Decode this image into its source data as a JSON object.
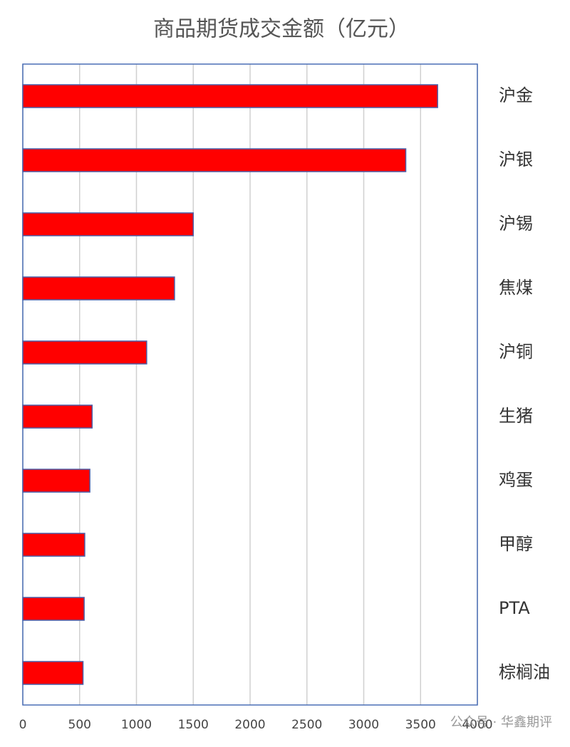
{
  "chart_data": {
    "type": "barh",
    "title": "商品期货成交金额（亿元）",
    "categories": [
      "沪金",
      "沪银",
      "沪锡",
      "焦煤",
      "沪铜",
      "生猪",
      "鸡蛋",
      "甲醇",
      "PTA",
      "棕榈油"
    ],
    "values": [
      3650,
      3370,
      1500,
      1335,
      1090,
      610,
      590,
      545,
      540,
      530
    ],
    "color": "#ff0000",
    "edge_color": "#4a5fa8",
    "xlim": [
      0,
      4000
    ],
    "xticks": [
      0,
      500,
      1000,
      1500,
      2000,
      2500,
      3000,
      3500,
      4000
    ],
    "grid": true,
    "watermark": "公众号 · 华鑫期评"
  }
}
